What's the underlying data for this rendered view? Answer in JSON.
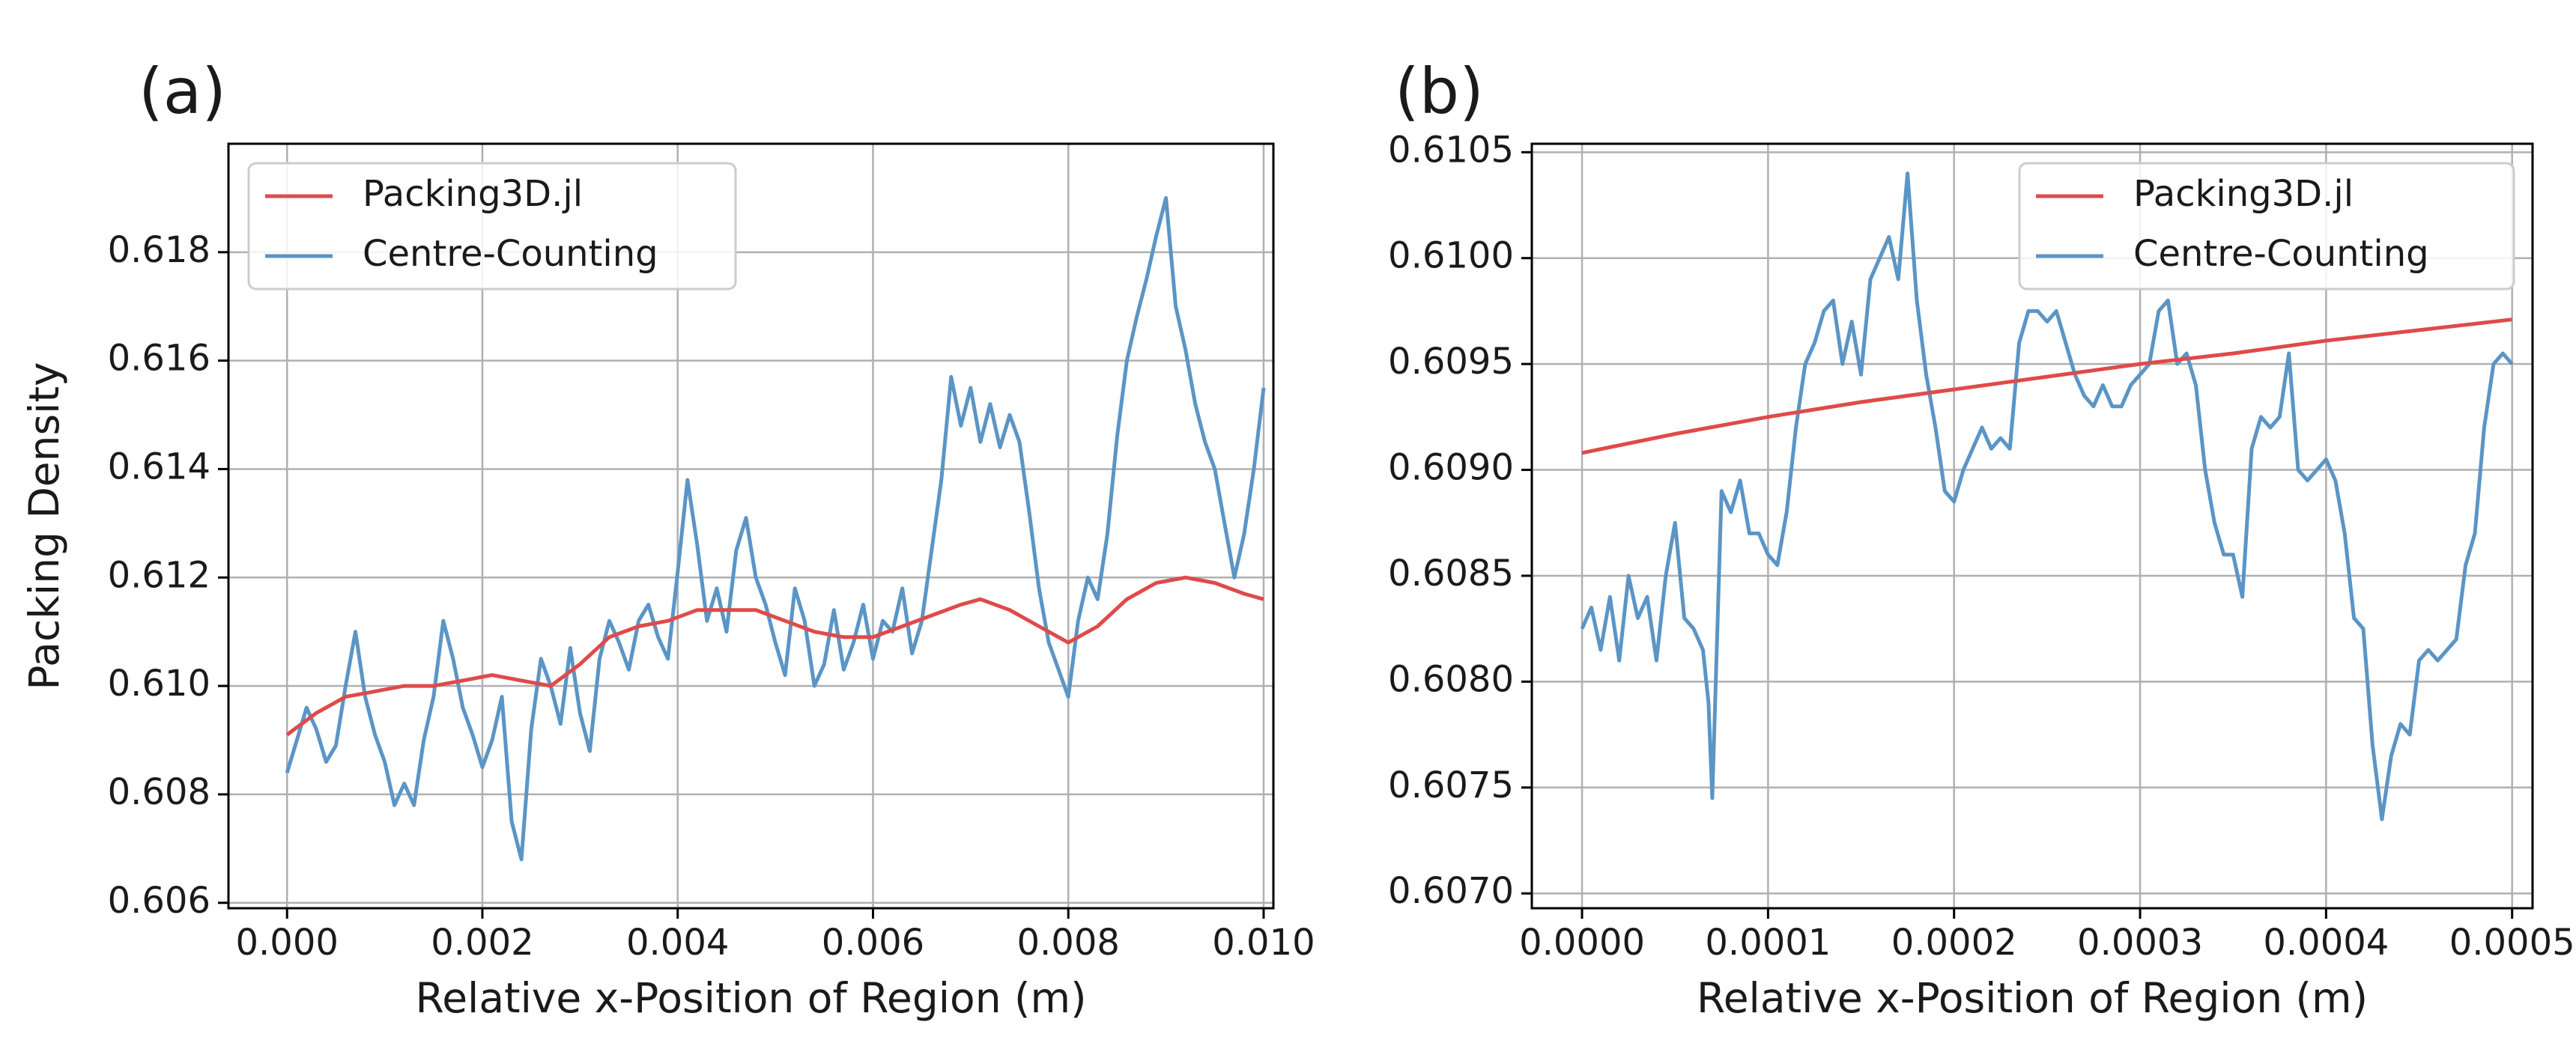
{
  "colors": {
    "packing3d": "#e04a4a",
    "centre_counting": "#5b95c5",
    "grid": "#b0b0b0",
    "axes": "#000000"
  },
  "chart_data": [
    {
      "id": "a",
      "panel_label": "(a)",
      "type": "line",
      "xlabel": "Relative x-Position of Region (m)",
      "ylabel": "Packing Density",
      "xlim": [
        -0.0006,
        0.0101
      ],
      "ylim": [
        0.6059,
        0.62
      ],
      "xticks": [
        0.0,
        0.002,
        0.004,
        0.006,
        0.008,
        0.01
      ],
      "xtick_labels": [
        "0.000",
        "0.002",
        "0.004",
        "0.006",
        "0.008",
        "0.010"
      ],
      "yticks": [
        0.606,
        0.608,
        0.61,
        0.612,
        0.614,
        0.616,
        0.618
      ],
      "ytick_labels": [
        "0.606",
        "0.608",
        "0.610",
        "0.612",
        "0.614",
        "0.616",
        "0.618"
      ],
      "grid": true,
      "legend_position": "top-left",
      "series": [
        {
          "name": "Packing3D.jl",
          "color_key": "packing3d",
          "x": [
            0.0,
            0.0003,
            0.0006,
            0.0009,
            0.0012,
            0.0015,
            0.0018,
            0.0021,
            0.0024,
            0.0027,
            0.003,
            0.0033,
            0.0036,
            0.0039,
            0.0042,
            0.0045,
            0.0048,
            0.0051,
            0.0054,
            0.0057,
            0.006,
            0.0063,
            0.0066,
            0.0069,
            0.0071,
            0.0074,
            0.0077,
            0.008,
            0.0083,
            0.0086,
            0.0089,
            0.0092,
            0.0095,
            0.0098,
            0.01
          ],
          "y": [
            0.6091,
            0.6095,
            0.6098,
            0.6099,
            0.61,
            0.61,
            0.6101,
            0.6102,
            0.6101,
            0.61,
            0.6104,
            0.6109,
            0.6111,
            0.6112,
            0.6114,
            0.6114,
            0.6114,
            0.6112,
            0.611,
            0.6109,
            0.6109,
            0.6111,
            0.6113,
            0.6115,
            0.6116,
            0.6114,
            0.6111,
            0.6108,
            0.6111,
            0.6116,
            0.6119,
            0.612,
            0.6119,
            0.6117,
            0.6116
          ]
        },
        {
          "name": "Centre-Counting",
          "color_key": "centre_counting",
          "x": [
            0.0,
            0.0001,
            0.0002,
            0.0003,
            0.0004,
            0.0005,
            0.0006,
            0.0007,
            0.0008,
            0.0009,
            0.001,
            0.0011,
            0.0012,
            0.0013,
            0.0014,
            0.0015,
            0.0016,
            0.0017,
            0.0018,
            0.0019,
            0.002,
            0.0021,
            0.0022,
            0.0023,
            0.0024,
            0.0025,
            0.0026,
            0.0027,
            0.0028,
            0.0029,
            0.003,
            0.0031,
            0.0032,
            0.0033,
            0.0034,
            0.0035,
            0.0036,
            0.0037,
            0.0038,
            0.0039,
            0.004,
            0.0041,
            0.0042,
            0.0043,
            0.0044,
            0.0045,
            0.0046,
            0.0047,
            0.0048,
            0.0049,
            0.005,
            0.0051,
            0.0052,
            0.0053,
            0.0054,
            0.0055,
            0.0056,
            0.0057,
            0.0058,
            0.0059,
            0.006,
            0.0061,
            0.0062,
            0.0063,
            0.0064,
            0.0065,
            0.0066,
            0.0067,
            0.0068,
            0.0069,
            0.007,
            0.0071,
            0.0072,
            0.0073,
            0.0074,
            0.0075,
            0.0076,
            0.0077,
            0.0078,
            0.0079,
            0.008,
            0.0081,
            0.0082,
            0.0083,
            0.0084,
            0.0085,
            0.0086,
            0.0087,
            0.0088,
            0.0089,
            0.009,
            0.0091,
            0.0092,
            0.0093,
            0.0094,
            0.0095,
            0.0096,
            0.0097,
            0.0098,
            0.0099,
            0.01
          ],
          "y": [
            0.6084,
            0.609,
            0.6096,
            0.6092,
            0.6086,
            0.6089,
            0.61,
            0.611,
            0.6098,
            0.6091,
            0.6086,
            0.6078,
            0.6082,
            0.6078,
            0.609,
            0.6098,
            0.6112,
            0.6105,
            0.6096,
            0.6091,
            0.6085,
            0.609,
            0.6098,
            0.6075,
            0.6068,
            0.6092,
            0.6105,
            0.61,
            0.6093,
            0.6107,
            0.6095,
            0.6088,
            0.6105,
            0.6112,
            0.6108,
            0.6103,
            0.6112,
            0.6115,
            0.6109,
            0.6105,
            0.6121,
            0.6138,
            0.6126,
            0.6112,
            0.6118,
            0.611,
            0.6125,
            0.6131,
            0.612,
            0.6115,
            0.6108,
            0.6102,
            0.6118,
            0.6112,
            0.61,
            0.6104,
            0.6114,
            0.6103,
            0.6108,
            0.6115,
            0.6105,
            0.6112,
            0.611,
            0.6118,
            0.6106,
            0.6112,
            0.6125,
            0.6138,
            0.6157,
            0.6148,
            0.6155,
            0.6145,
            0.6152,
            0.6144,
            0.615,
            0.6145,
            0.6132,
            0.6118,
            0.6108,
            0.6103,
            0.6098,
            0.6112,
            0.612,
            0.6116,
            0.6128,
            0.6146,
            0.616,
            0.6168,
            0.6175,
            0.6183,
            0.619,
            0.617,
            0.6162,
            0.6152,
            0.6145,
            0.614,
            0.613,
            0.612,
            0.6128,
            0.614,
            0.6155
          ]
        }
      ]
    },
    {
      "id": "b",
      "panel_label": "(b)",
      "type": "line",
      "xlabel": "Relative x-Position of Region (m)",
      "ylabel": "",
      "xlim": [
        -2.7e-05,
        0.000511
      ],
      "ylim": [
        0.60693,
        0.61054
      ],
      "xticks": [
        0.0,
        0.0001,
        0.0002,
        0.0003,
        0.0004,
        0.0005
      ],
      "xtick_labels": [
        "0.0000",
        "0.0001",
        "0.0002",
        "0.0003",
        "0.0004",
        "0.0005"
      ],
      "yticks": [
        0.607,
        0.6075,
        0.608,
        0.6085,
        0.609,
        0.6095,
        0.61,
        0.6105
      ],
      "ytick_labels": [
        "0.6070",
        "0.6075",
        "0.6080",
        "0.6085",
        "0.6090",
        "0.6095",
        "0.6100",
        "0.6105"
      ],
      "grid": true,
      "legend_position": "top-right",
      "series": [
        {
          "name": "Packing3D.jl",
          "color_key": "packing3d",
          "x": [
            0.0,
            5e-05,
            0.0001,
            0.00015,
            0.0002,
            0.00025,
            0.0003,
            0.00035,
            0.0004,
            0.00045,
            0.0005
          ],
          "y": [
            0.60908,
            0.60917,
            0.60925,
            0.60932,
            0.60938,
            0.60944,
            0.6095,
            0.60955,
            0.60961,
            0.60966,
            0.60971
          ]
        },
        {
          "name": "Centre-Counting",
          "color_key": "centre_counting",
          "x": [
            0.0,
            5e-06,
            1e-05,
            1.5e-05,
            2e-05,
            2.5e-05,
            3e-05,
            3.5e-05,
            4e-05,
            4.5e-05,
            5e-05,
            5.5e-05,
            6e-05,
            6.5e-05,
            6.8e-05,
            7e-05,
            7.5e-05,
            8e-05,
            8.5e-05,
            9e-05,
            9.5e-05,
            0.0001,
            0.000105,
            0.00011,
            0.000115,
            0.00012,
            0.000125,
            0.00013,
            0.000135,
            0.00014,
            0.000145,
            0.00015,
            0.000155,
            0.00016,
            0.000165,
            0.00017,
            0.000175,
            0.00018,
            0.000185,
            0.00019,
            0.000195,
            0.0002,
            0.000205,
            0.00021,
            0.000215,
            0.00022,
            0.000225,
            0.00023,
            0.000235,
            0.00024,
            0.000245,
            0.00025,
            0.000255,
            0.00026,
            0.000265,
            0.00027,
            0.000275,
            0.00028,
            0.000285,
            0.00029,
            0.000295,
            0.0003,
            0.000305,
            0.00031,
            0.000315,
            0.00032,
            0.000325,
            0.00033,
            0.000335,
            0.00034,
            0.000345,
            0.00035,
            0.000355,
            0.00036,
            0.000365,
            0.00037,
            0.000375,
            0.00038,
            0.000385,
            0.00039,
            0.000395,
            0.0004,
            0.000405,
            0.00041,
            0.000415,
            0.00042,
            0.000425,
            0.00043,
            0.000435,
            0.00044,
            0.000445,
            0.00045,
            0.000455,
            0.00046,
            0.000465,
            0.00047,
            0.000475,
            0.00048,
            0.000485,
            0.00049,
            0.000495,
            0.0005
          ],
          "y": [
            0.60825,
            0.60835,
            0.60815,
            0.6084,
            0.6081,
            0.6085,
            0.6083,
            0.6084,
            0.6081,
            0.6085,
            0.60875,
            0.6083,
            0.60825,
            0.60815,
            0.6079,
            0.60745,
            0.6089,
            0.6088,
            0.60895,
            0.6087,
            0.6087,
            0.6086,
            0.60855,
            0.6088,
            0.6092,
            0.6095,
            0.6096,
            0.60975,
            0.6098,
            0.6095,
            0.6097,
            0.60945,
            0.6099,
            0.61,
            0.6101,
            0.6099,
            0.6104,
            0.6098,
            0.60945,
            0.6092,
            0.6089,
            0.60885,
            0.609,
            0.6091,
            0.6092,
            0.6091,
            0.60915,
            0.6091,
            0.6096,
            0.60975,
            0.60975,
            0.6097,
            0.60975,
            0.6096,
            0.60945,
            0.60935,
            0.6093,
            0.6094,
            0.6093,
            0.6093,
            0.6094,
            0.60945,
            0.6095,
            0.60975,
            0.6098,
            0.6095,
            0.60955,
            0.6094,
            0.609,
            0.60875,
            0.6086,
            0.6086,
            0.6084,
            0.6091,
            0.60925,
            0.6092,
            0.60925,
            0.60955,
            0.609,
            0.60895,
            0.609,
            0.60905,
            0.60895,
            0.6087,
            0.6083,
            0.60825,
            0.6077,
            0.60735,
            0.60765,
            0.6078,
            0.60775,
            0.6081,
            0.60815,
            0.6081,
            0.60815,
            0.6082,
            0.60855,
            0.6087,
            0.6092,
            0.6095,
            0.60955,
            0.6095
          ]
        }
      ]
    }
  ]
}
